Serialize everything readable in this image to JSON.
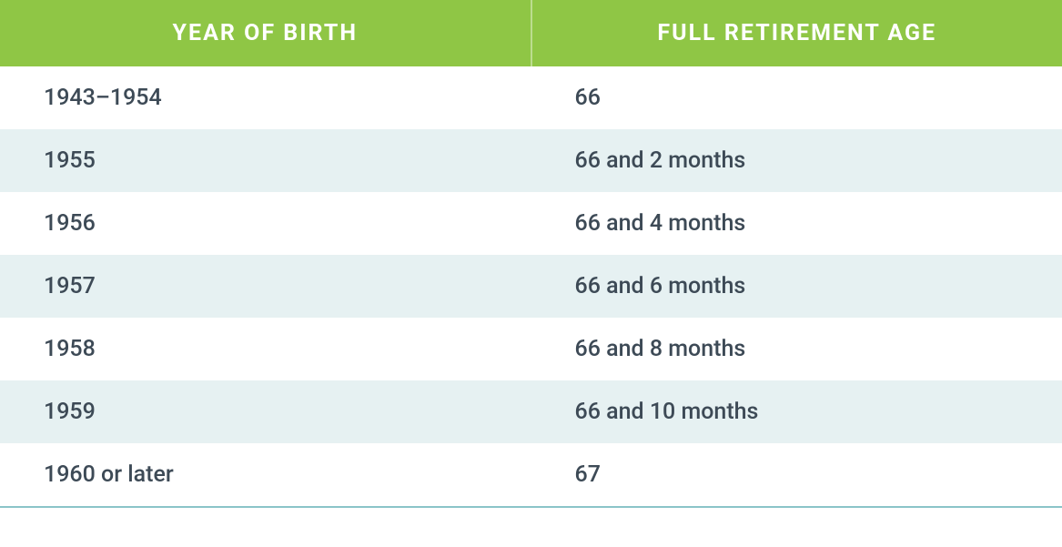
{
  "table": {
    "header_bg": "#8fc645",
    "header_text_color": "#ffffff",
    "row_odd_bg": "#ffffff",
    "row_even_bg": "#e6f1f2",
    "cell_text_color": "#3d4a56",
    "bottom_border_color": "#8bc4c8",
    "columns": [
      {
        "label": "YEAR OF BIRTH"
      },
      {
        "label": "FULL RETIREMENT AGE"
      }
    ],
    "rows": [
      {
        "year": "1943–1954",
        "age": "66"
      },
      {
        "year": "1955",
        "age": "66 and 2 months"
      },
      {
        "year": "1956",
        "age": "66 and 4 months"
      },
      {
        "year": "1957",
        "age": "66 and 6 months"
      },
      {
        "year": "1958",
        "age": "66 and 8 months"
      },
      {
        "year": "1959",
        "age": "66 and 10 months"
      },
      {
        "year": "1960 or later",
        "age": "67"
      }
    ]
  }
}
